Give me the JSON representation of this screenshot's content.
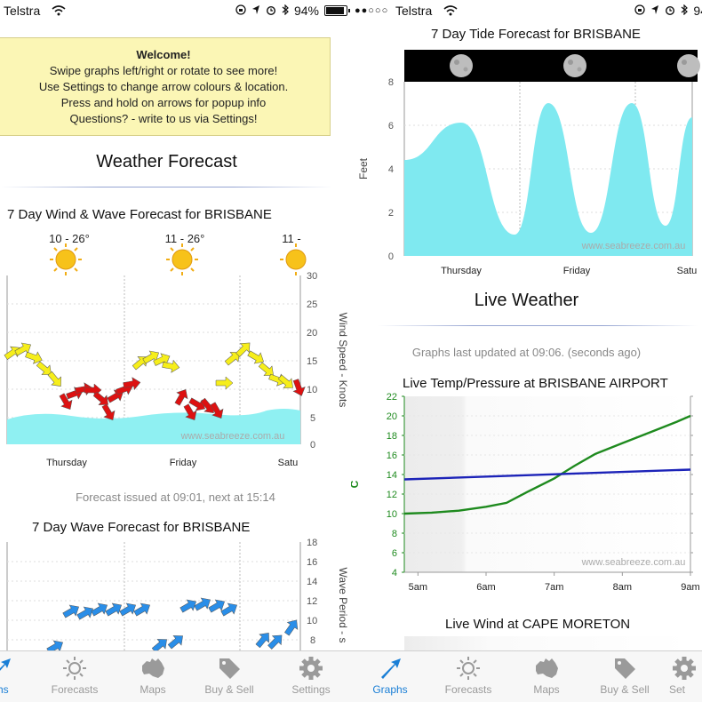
{
  "status_left": {
    "carrier": "Telstra",
    "battery": "94%"
  },
  "status_right": {
    "carrier": "Telstra",
    "signal_dots": "●●○○○",
    "battery": "94"
  },
  "welcome": {
    "title": "Welcome!",
    "lines": [
      "Swipe graphs left/right or rotate to see more!",
      "Use Settings to change arrow colours & location.",
      "Press and hold on arrows for popup info",
      "Questions? - write to us via Settings!"
    ]
  },
  "weather_forecast": {
    "title": "Weather Forecast"
  },
  "wind_wave": {
    "title": "7 Day Wind & Wave Forecast for BRISBANE",
    "day_temps": [
      "10 - 26°",
      "11 - 26°",
      "11 -"
    ],
    "ylabel": "Wind Speed - Knots",
    "yticks": [
      "30",
      "25",
      "20",
      "15",
      "10",
      "5",
      "0"
    ],
    "days": [
      "Thursday",
      "Friday",
      "Satu"
    ],
    "watermark": "www.seabreeze.com.au"
  },
  "forecast_issued": "Forecast issued at 09:01, next at 15:14",
  "wave_forecast": {
    "title": "7 Day Wave Forecast for BRISBANE",
    "ylabel": "Wave Period - s",
    "yticks": [
      "18",
      "16",
      "14",
      "12",
      "10",
      "8"
    ]
  },
  "tide": {
    "title": "7 Day Tide Forecast for BRISBANE",
    "ylabel": "Feet",
    "yticks": [
      "8",
      "6",
      "4",
      "2",
      "0"
    ],
    "days": [
      "Thursday",
      "Friday",
      "Satu"
    ],
    "watermark": "www.seabreeze.com.au"
  },
  "live_weather": {
    "title": "Live Weather",
    "updated": "Graphs last updated at 09:06. (seconds ago)"
  },
  "live_temp": {
    "title": "Live Temp/Pressure at BRISBANE AIRPORT",
    "ylabel": "C",
    "watermark": "www.seabreeze.com.au"
  },
  "live_wind": {
    "title": "Live Wind at CAPE MORETON"
  },
  "tabs_left": [
    "phs",
    "Forecasts",
    "Maps",
    "Buy & Sell",
    "Settings"
  ],
  "tabs_right": [
    "Graphs",
    "Forecasts",
    "Maps",
    "Buy & Sell",
    "Set"
  ],
  "colors": {
    "accent": "#1a7fd6",
    "wave_fill": "#8ff0f2",
    "tide_fill": "#7fe9f0",
    "arrow_yellow": "#f6ee1a",
    "arrow_red": "#dd1111",
    "arrow_blue": "#2a8ee8",
    "temp_line": "#1e8a1e",
    "pressure_line": "#1c23b8"
  },
  "chart_data": {
    "type": "line",
    "title": "Live Temp/Pressure at BRISBANE AIRPORT",
    "xlabel": "",
    "ylabel": "C",
    "categories": [
      "5am",
      "6am",
      "7am",
      "8am",
      "9am"
    ],
    "yticks": [
      "22",
      "20",
      "18",
      "16",
      "14",
      "12",
      "10",
      "8",
      "6",
      "4"
    ],
    "ylim": [
      4,
      22
    ],
    "series": [
      {
        "x": [
          4.8,
          5.2,
          5.6,
          6.0,
          6.3,
          6.6,
          7.0,
          7.3,
          7.6,
          8.0,
          8.4,
          8.8,
          9.0
        ],
        "values": [
          10.0,
          10.1,
          10.3,
          10.7,
          11.1,
          12.2,
          13.6,
          14.9,
          16.1,
          17.2,
          18.3,
          19.4,
          20.0
        ]
      },
      {
        "x": [
          4.8,
          9.0
        ],
        "values": [
          13.5,
          14.5
        ]
      }
    ],
    "grid": true
  }
}
